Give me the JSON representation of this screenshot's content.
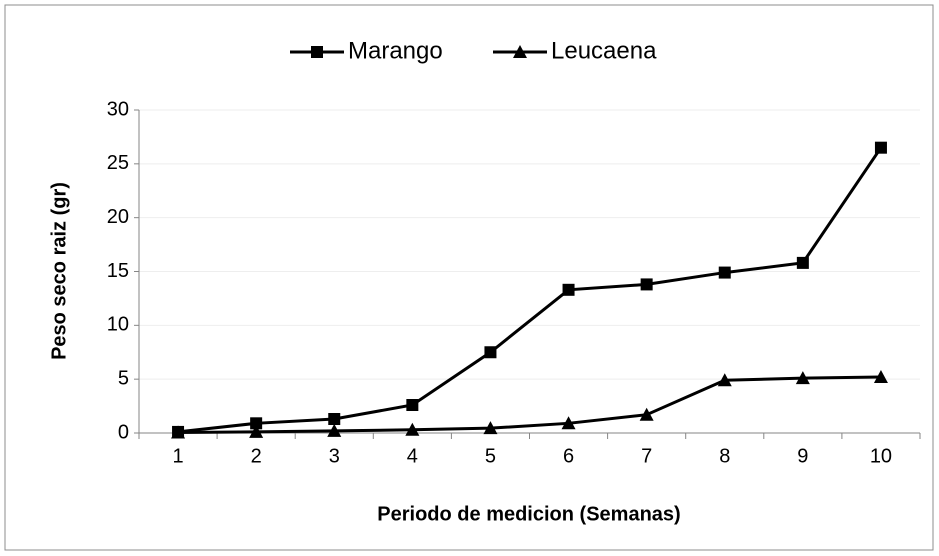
{
  "chart_data": {
    "type": "line",
    "x_label": "Periodo de medicion (Semanas)",
    "y_label": "Peso seco raiz (gr)",
    "categories": [
      "1",
      "2",
      "3",
      "4",
      "5",
      "6",
      "7",
      "8",
      "9",
      "10"
    ],
    "series": [
      {
        "name": "Marango",
        "color": "#000000",
        "marker": "square",
        "values": [
          0.1,
          0.9,
          1.3,
          2.6,
          7.5,
          13.3,
          13.8,
          14.9,
          15.8,
          26.5
        ]
      },
      {
        "name": "Leucaena",
        "color": "#000000",
        "marker": "triangle",
        "values": [
          0.05,
          0.1,
          0.2,
          0.3,
          0.45,
          0.9,
          1.7,
          4.9,
          5.1,
          5.2
        ]
      }
    ],
    "ylim": [
      0,
      30
    ],
    "yticks": [
      0,
      5,
      10,
      15,
      20,
      25,
      30
    ],
    "grid": true,
    "legend": "top"
  }
}
